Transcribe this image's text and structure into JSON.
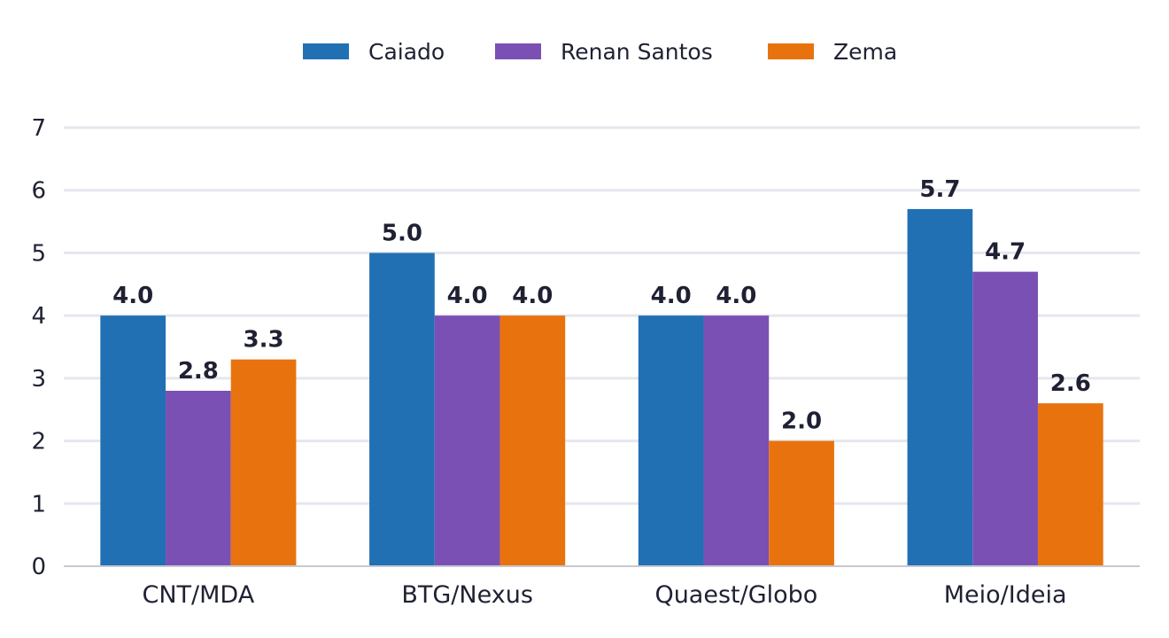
{
  "chart_data": {
    "type": "bar",
    "title": "",
    "xlabel": "",
    "ylabel": "",
    "categories": [
      "CNT/MDA",
      "BTG/Nexus",
      "Quaest/Globo",
      "Meio/Ideia"
    ],
    "series": [
      {
        "name": "Caiado",
        "color": "#2170b4",
        "values": [
          4.0,
          5.0,
          4.0,
          5.7
        ]
      },
      {
        "name": "Renan Santos",
        "color": "#7b50b5",
        "values": [
          2.8,
          4.0,
          4.0,
          4.7
        ]
      },
      {
        "name": "Zema",
        "color": "#e8730e",
        "values": [
          3.3,
          4.0,
          2.0,
          2.6
        ]
      }
    ],
    "ylim": [
      0,
      7
    ],
    "yticks": [
      0,
      1,
      2,
      3,
      4,
      5,
      6,
      7
    ],
    "grid": true,
    "legend": "top-center",
    "data_labels": true
  }
}
